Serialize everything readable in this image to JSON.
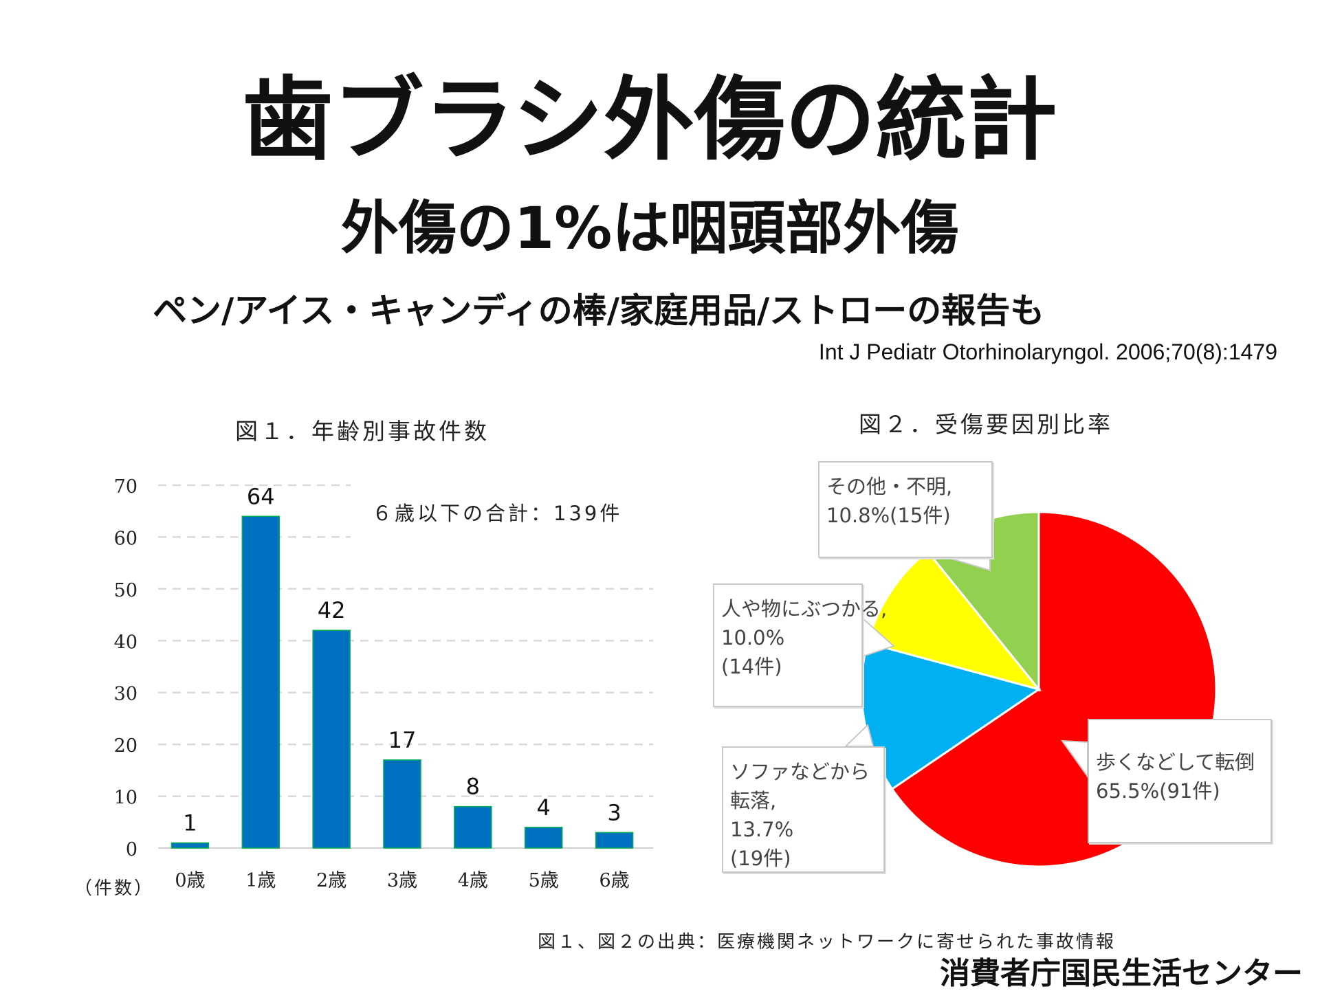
{
  "slide": {
    "title": "歯ブラシ外傷の統計",
    "subtitle": "外傷の1%は咽頭部外傷",
    "line3": "ペン/アイス・キャンディの棒/家庭用品/ストローの報告も",
    "citation": "Int J Pediatr Otorhinolaryngol. 2006;70(8):1479",
    "footer_source": "図１、図２の出典：医療機関ネットワークに寄せられた事故情報",
    "footer_org": "消費者庁国民生活センター"
  },
  "chart_data": [
    {
      "type": "bar",
      "title": "図１．年齢別事故件数",
      "categories": [
        "0歳",
        "1歳",
        "2歳",
        "3歳",
        "4歳",
        "5歳",
        "6歳"
      ],
      "values": [
        1,
        64,
        42,
        17,
        8,
        4,
        3
      ],
      "ylabel": "（件数）",
      "ylim": [
        0,
        70
      ],
      "yticks": [
        "0",
        "10",
        "20",
        "30",
        "40",
        "50",
        "60",
        "70"
      ],
      "grid": "dashed horizontal",
      "annotation": "６歳以下の合計：139件",
      "colors": {
        "bar": "#0070C0",
        "bar_edge": "#00B050",
        "grid": "#d9d9d9"
      }
    },
    {
      "type": "pie",
      "title": "図２．受傷要因別比率",
      "slices": [
        {
          "label": "歩くなどして転倒",
          "detail": "65.5%(91件)",
          "percent": 65.5,
          "count": 91,
          "color": "#FF0000"
        },
        {
          "label": "ソファなどから転落,",
          "detail": "13.7%",
          "detail2": "(19件)",
          "percent": 13.7,
          "count": 19,
          "color": "#00B0F0"
        },
        {
          "label": "人や物にぶつかる,",
          "detail": "10.0%",
          "detail2": "(14件)",
          "percent": 10.0,
          "count": 14,
          "color": "#FFFF00"
        },
        {
          "label": "その他・不明,",
          "detail": "10.8%(15件)",
          "percent": 10.8,
          "count": 15,
          "color": "#92D050"
        }
      ]
    }
  ]
}
